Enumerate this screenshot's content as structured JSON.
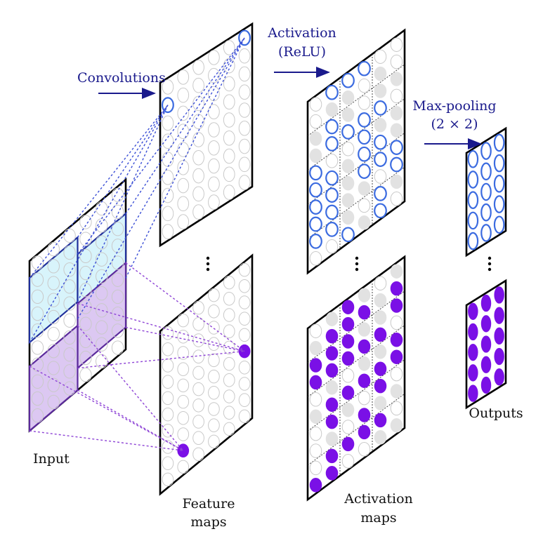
{
  "labels": {
    "convolutions": "Convolutions",
    "activation_line1": "Activation",
    "activation_line2": "(ReLU)",
    "maxpool_line1": "Max-pooling",
    "maxpool_line2": "(2 × 2)",
    "input": "Input",
    "feature_line1": "Feature",
    "feature_line2": "maps",
    "activation_maps_line1": "Activation",
    "activation_maps_line2": "maps",
    "outputs": "Outputs"
  },
  "colors": {
    "annotation_blue": "#1a1a8c",
    "neuron_blue": "#3b6be0",
    "neuron_purple": "#7a10e6",
    "connection_purple": "#8e44d6",
    "patch_blue_fill": "#d8f4fb",
    "patch_purple_fill": "#dcc8f2",
    "empty_neuron": "#c9c9c9",
    "frame": "#000000"
  }
}
